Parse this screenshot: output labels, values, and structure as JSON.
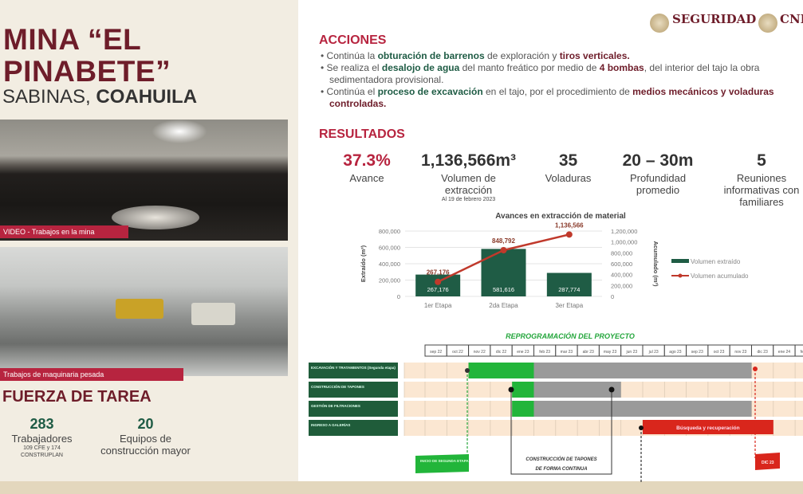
{
  "left": {
    "title_line1": "MINA “EL",
    "title_line2": "PINABETE”",
    "subtitle_regular": "SABINAS, ",
    "subtitle_bold": "COAHUILA",
    "photo1_caption": "VIDEO - Trabajos en la mina",
    "photo2_caption": "Trabajos de maquinaria pesada",
    "section": "FUERZA DE TAREA",
    "stats": [
      {
        "value": "283",
        "label": "Trabajadores",
        "note1": "109 CFE y 174",
        "note2": "CONSTRUPLAN"
      },
      {
        "value": "20",
        "label1": "Equipos de",
        "label2": "construcción mayor"
      }
    ]
  },
  "logos": {
    "seguridad": "SEGURIDAD",
    "cnpc": "CNP"
  },
  "acciones": {
    "title": "ACCIONES",
    "items": [
      [
        {
          "t": "Continúa la "
        },
        {
          "t": "obturación de barrenos",
          "s": "g"
        },
        {
          "t": " de exploración y "
        },
        {
          "t": "tiros verticales.",
          "s": "m"
        }
      ],
      [
        {
          "t": "Se realiza el "
        },
        {
          "t": "desalojo de agua",
          "s": "g"
        },
        {
          "t": " del manto freático por medio de "
        },
        {
          "t": "4 bombas",
          "s": "m"
        },
        {
          "t": ", del interior del tajo la obra sedimentadora provisional."
        }
      ],
      [
        {
          "t": "Continúa el "
        },
        {
          "t": "proceso de excavación",
          "s": "g"
        },
        {
          "t": " en el tajo, por el procedimiento de "
        },
        {
          "t": "medios mecánicos y voladuras controladas.",
          "s": "m"
        }
      ]
    ]
  },
  "resultados": {
    "title": "RESULTADOS",
    "items": [
      {
        "value": "37.3%",
        "label": "Avance"
      },
      {
        "value": "1,136,566m³",
        "label": "Volumen de extracción",
        "note": "Al 19 de febrero 2023"
      },
      {
        "value": "35",
        "label": "Voladuras"
      },
      {
        "value": "20 – 30m",
        "label": "Profundidad promedio"
      },
      {
        "value": "5",
        "label": "Reuniones informativas con familiares"
      }
    ]
  },
  "chart_data": {
    "type": "bar",
    "title": "Avances en extracción de material",
    "categories": [
      "1er Etapa",
      "2da Etapa",
      "3er Etapa"
    ],
    "ylabel": "Extraído (m³)",
    "y2label": "Acumulado (m³)",
    "ylim": [
      0,
      800000
    ],
    "y2lim": [
      0,
      1200000
    ],
    "yticks": [
      "0",
      "200,000",
      "400,000",
      "600,000",
      "800,000"
    ],
    "y2ticks": [
      "0",
      "200,000",
      "400,000",
      "600,000",
      "800,000",
      "1,000,000",
      "1,200,000"
    ],
    "series": [
      {
        "name": "Volumen extraído",
        "type": "bar",
        "color": "#1f5c45",
        "values": [
          267176,
          581616,
          287774
        ],
        "labels": [
          "267,176",
          "581,616",
          "287,774"
        ]
      },
      {
        "name": "Volumen acumulado",
        "type": "line",
        "axis": "right",
        "color": "#c0392b",
        "values": [
          267176,
          848792,
          1136566
        ],
        "labels": [
          "267,176",
          "848,792",
          "1,136,566"
        ]
      }
    ],
    "legend": "right",
    "grid": true
  },
  "gantt": {
    "title": "REPROGRAMACIÓN DEL PROYECTO",
    "months": [
      "sep 22",
      "oct 22",
      "nov 22",
      "dic 22",
      "ene 23",
      "feb 23",
      "mar 23",
      "abr 23",
      "may 23",
      "jun 23",
      "jul 23",
      "ago 23",
      "sep 23",
      "oct 23",
      "nov 23",
      "dic 23",
      "ene 24",
      "feb 24"
    ],
    "tasks": [
      {
        "label": "EXCAVACIÓN Y TRATAMIENTOS (Segunda etapa)",
        "done": [
          "nov 22",
          "ene 23"
        ],
        "planned": [
          "feb 23",
          "nov 23"
        ]
      },
      {
        "label": "CONSTRUCCIÓN DE TAPONES",
        "done": [
          "ene 23",
          "ene 23"
        ],
        "planned": [
          "feb 23",
          "may 23"
        ]
      },
      {
        "label": "GESTIÓN DE FILTRACIONES",
        "done": [
          "ene 23",
          "ene 23"
        ],
        "planned": [
          "feb 23",
          "nov 23"
        ]
      },
      {
        "label": "INGRESO A GALERÍAS",
        "red": [
          "jul 23",
          "dic 23"
        ],
        "red_label": "Búsqueda y recuperación"
      }
    ],
    "callouts": {
      "inicio": "INICIO DE SEGUNDA ETAPA",
      "tapones_1": "CONSTRUCCIÓN DE TAPONES",
      "tapones_2": "DE FORMA CONTINUA",
      "dic": "DIC 23"
    },
    "colors": {
      "done": "#22b53a",
      "planned": "#9a9a9a",
      "red": "#d9261c",
      "label_bg": "#1f5c3a",
      "grid_bg": "#fbe7d2"
    }
  }
}
